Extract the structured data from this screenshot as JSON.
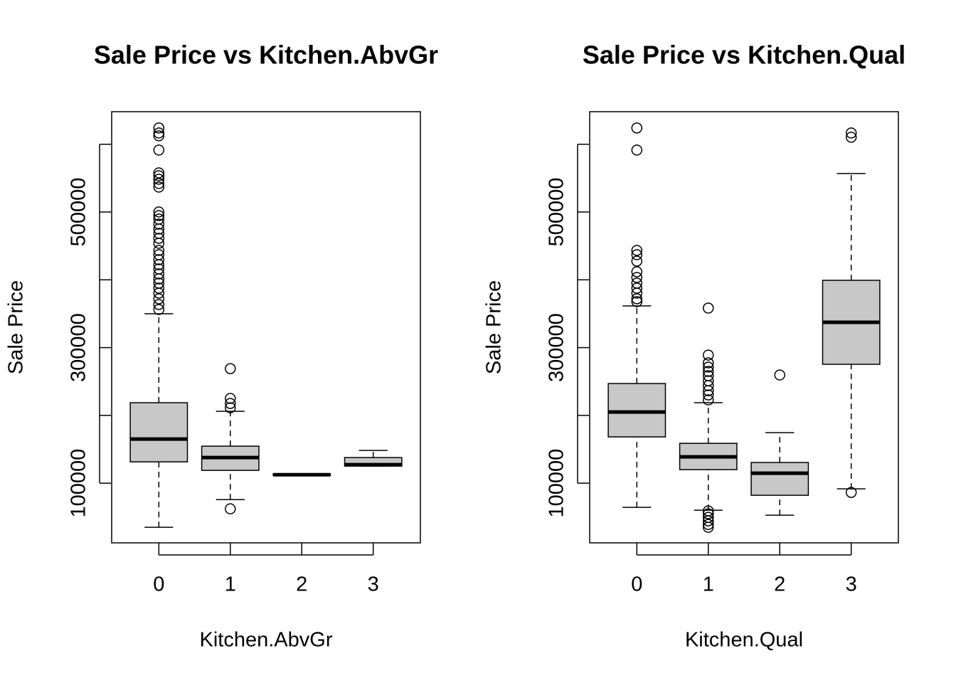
{
  "chart_data": [
    {
      "type": "box",
      "title": "Sale Price vs Kitchen.AbvGr",
      "xlabel": "Kitchen.AbvGr",
      "ylabel": "Sale Price",
      "color": "#c8c8c8",
      "categories": [
        "0",
        "1",
        "2",
        "3"
      ],
      "boxes": [
        {
          "min": 34900,
          "q1": 131500,
          "median": 165100,
          "q3": 218700,
          "max": 349900,
          "outliers": [
            624000,
            616600,
            612400,
            591400,
            557800,
            553600,
            548400,
            542100,
            536800,
            500100,
            494800,
            489600,
            482200,
            474900,
            468600,
            461200,
            453900,
            443400,
            437100,
            429700,
            422400,
            416100,
            408700,
            401400,
            395100,
            387700,
            380400,
            372000,
            363600,
            356200
          ]
        },
        {
          "min": 75800,
          "q1": 118900,
          "median": 137800,
          "q3": 154600,
          "max": 206000,
          "outliers": [
            62200,
            269000,
            225000,
            217600,
            211300
          ]
        },
        {
          "min": 111500,
          "q1": 111500,
          "median": 112500,
          "q3": 113500,
          "max": 113500,
          "outliers": []
        },
        {
          "min": 125200,
          "q1": 125200,
          "median": 127300,
          "q3": 137800,
          "max": 148300,
          "outliers": []
        }
      ],
      "ylim": [
        12000,
        648000
      ],
      "yticks": [
        100000,
        {
          "value": 200000,
          "label": null
        },
        300000,
        {
          "value": 400000,
          "label": null
        },
        500000,
        {
          "value": 600000,
          "label": null
        }
      ]
    },
    {
      "type": "box",
      "title": "Sale Price vs Kitchen.Qual",
      "xlabel": "Kitchen.Qual",
      "ylabel": "Sale Price",
      "color": "#c8c8c8",
      "categories": [
        "0",
        "1",
        "2",
        "3"
      ],
      "boxes": [
        {
          "min": 64300,
          "q1": 168300,
          "median": 205000,
          "q3": 247000,
          "max": 361500,
          "outliers": [
            624000,
            591400,
            443400,
            437100,
            427600,
            411900,
            403500,
            395100,
            387700,
            380400,
            372000,
            367800
          ]
        },
        {
          "min": 60100,
          "q1": 120000,
          "median": 138900,
          "q3": 158800,
          "max": 218700,
          "outliers": [
            358300,
            289000,
            277500,
            271200,
            264900,
            258600,
            251200,
            243900,
            236500,
            230200,
            222900,
            59100,
            54900,
            49600,
            44400,
            39100,
            34900
          ]
        },
        {
          "min": 52750,
          "q1": 82200,
          "median": 114700,
          "q3": 130500,
          "max": 174600,
          "outliers": [
            259600
          ]
        },
        {
          "min": 91600,
          "q1": 275400,
          "median": 337300,
          "q3": 399300,
          "max": 556800,
          "outliers": [
            616600,
            610300,
            86400
          ]
        }
      ],
      "ylim": [
        12000,
        648000
      ],
      "yticks": [
        100000,
        {
          "value": 200000,
          "label": null
        },
        300000,
        {
          "value": 400000,
          "label": null
        },
        500000,
        {
          "value": 600000,
          "label": null
        }
      ]
    }
  ]
}
